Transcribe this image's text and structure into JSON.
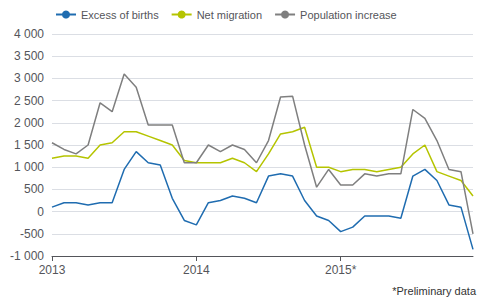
{
  "chart_data": {
    "type": "line",
    "categories": [
      "2013",
      null,
      null,
      null,
      null,
      null,
      null,
      null,
      null,
      null,
      null,
      null,
      "2014",
      null,
      null,
      null,
      null,
      null,
      null,
      null,
      null,
      null,
      null,
      null,
      "2015*",
      null,
      null,
      null,
      null,
      null,
      null,
      null,
      null,
      null,
      null,
      null
    ],
    "series": [
      {
        "name": "Excess of births",
        "color": "#1f6cb0",
        "values": [
          100,
          200,
          200,
          150,
          200,
          200,
          950,
          1350,
          1100,
          1050,
          300,
          -200,
          -300,
          200,
          250,
          350,
          300,
          200,
          800,
          850,
          800,
          250,
          -100,
          -200,
          -450,
          -350,
          -100,
          -100,
          -100,
          -150,
          800,
          950,
          700,
          150,
          100,
          -850
        ]
      },
      {
        "name": "Net migration",
        "color": "#b5c400",
        "values": [
          1200,
          1250,
          1250,
          1200,
          1500,
          1550,
          1800,
          1800,
          1700,
          1600,
          1500,
          1150,
          1100,
          1100,
          1100,
          1200,
          1100,
          900,
          1300,
          1750,
          1800,
          1900,
          1000,
          1000,
          900,
          950,
          950,
          900,
          950,
          1000,
          1300,
          1500,
          900,
          800,
          700,
          350
        ]
      },
      {
        "name": "Population increase",
        "color": "#7f7f7f",
        "values": [
          1550,
          1400,
          1300,
          1500,
          2450,
          2250,
          3100,
          2800,
          1950,
          1950,
          1950,
          1100,
          1100,
          1500,
          1350,
          1500,
          1400,
          1100,
          1600,
          2580,
          2600,
          1500,
          550,
          950,
          600,
          600,
          850,
          800,
          850,
          850,
          2300,
          2100,
          1600,
          950,
          900,
          -500
        ]
      }
    ],
    "ylim": [
      -1000,
      4000
    ],
    "yticks": [
      {
        "value": -1000,
        "label": "-1 000"
      },
      -500,
      0,
      500,
      {
        "value": 1000,
        "label": "1 000"
      },
      {
        "value": 1500,
        "label": "1 500"
      },
      {
        "value": 2000,
        "label": "2 000"
      },
      {
        "value": 2500,
        "label": "2 500"
      },
      {
        "value": 3000,
        "label": "3 000"
      },
      {
        "value": 3500,
        "label": "3 500"
      },
      {
        "value": 4000,
        "label": "4 000"
      }
    ],
    "grid": true,
    "legend": "top-left",
    "annotations": [
      "*Preliminary data"
    ]
  }
}
